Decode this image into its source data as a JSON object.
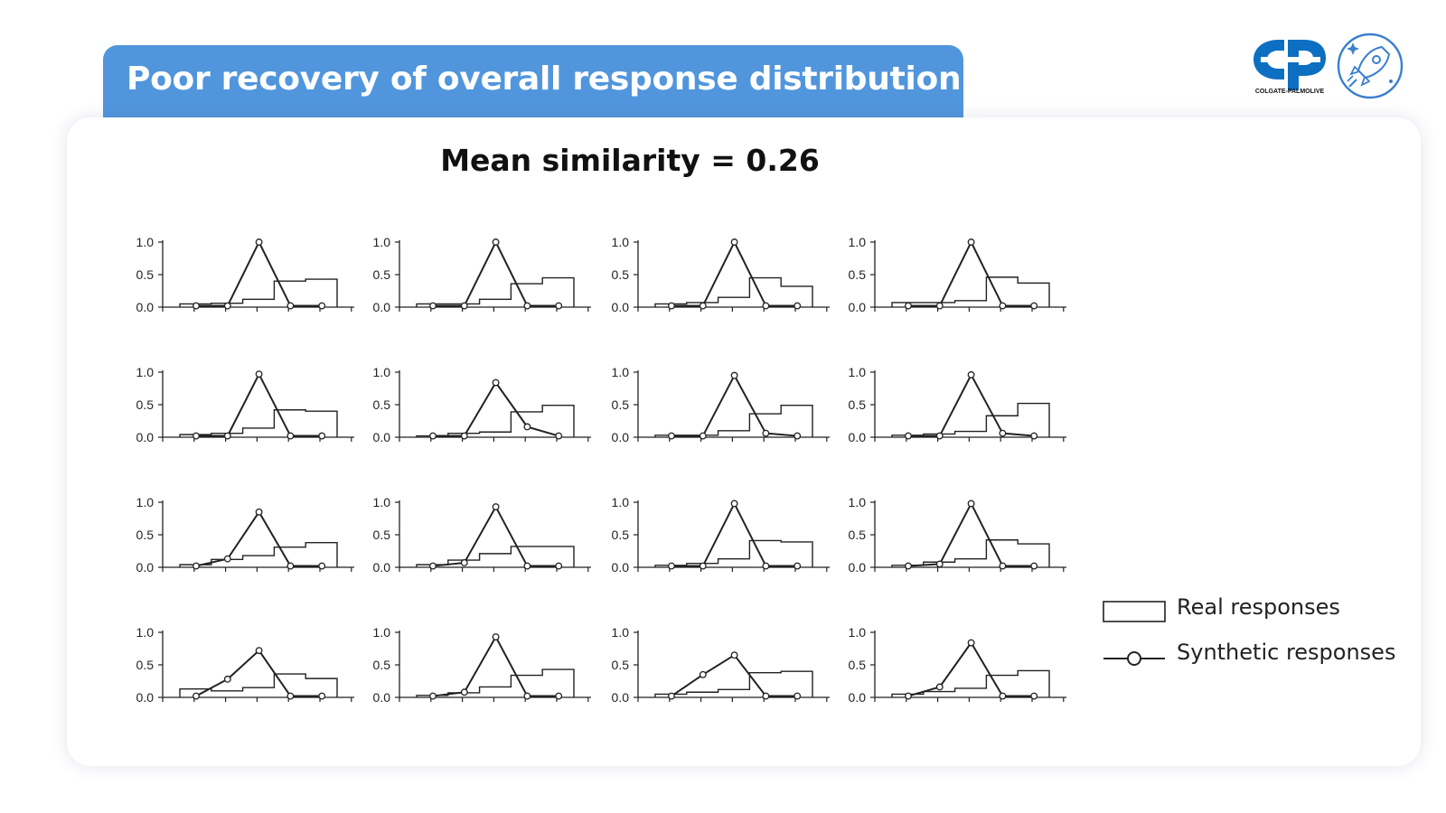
{
  "header": {
    "title": "Poor recovery of overall response distribution"
  },
  "logos": {
    "brand": "COLGATE-PALMOLIVE",
    "brand_color": "#0d6fc2",
    "rocket_icon": "rocket-icon",
    "rocket_color": "#3a7fd0"
  },
  "colors": {
    "accent": "#5196dc",
    "ink": "#222222"
  },
  "chart_data": {
    "type": "line",
    "title": "Mean similarity = 0.26",
    "ylim": [
      0,
      1.0
    ],
    "yticks": [
      "1.0",
      "0.5",
      "0.0"
    ],
    "legend": {
      "placement": "right",
      "real": "Real responses",
      "synthetic": "Synthetic responses"
    },
    "panels": [
      {
        "real": [
          0.05,
          0.06,
          0.12,
          0.4,
          0.43
        ],
        "synthetic": [
          0.02,
          0.02,
          1.0,
          0.02,
          0.02
        ]
      },
      {
        "real": [
          0.05,
          0.05,
          0.12,
          0.36,
          0.45
        ],
        "synthetic": [
          0.02,
          0.02,
          1.0,
          0.02,
          0.02
        ]
      },
      {
        "real": [
          0.05,
          0.07,
          0.15,
          0.45,
          0.32
        ],
        "synthetic": [
          0.02,
          0.02,
          1.0,
          0.02,
          0.02
        ]
      },
      {
        "real": [
          0.07,
          0.07,
          0.1,
          0.46,
          0.37
        ],
        "synthetic": [
          0.02,
          0.02,
          1.0,
          0.02,
          0.02
        ]
      },
      {
        "real": [
          0.04,
          0.06,
          0.14,
          0.42,
          0.4
        ],
        "synthetic": [
          0.02,
          0.02,
          0.97,
          0.02,
          0.02
        ]
      },
      {
        "real": [
          0.02,
          0.06,
          0.08,
          0.39,
          0.49
        ],
        "synthetic": [
          0.02,
          0.02,
          0.84,
          0.16,
          0.02
        ]
      },
      {
        "real": [
          0.03,
          0.03,
          0.1,
          0.36,
          0.49
        ],
        "synthetic": [
          0.02,
          0.02,
          0.95,
          0.06,
          0.02
        ]
      },
      {
        "real": [
          0.03,
          0.05,
          0.09,
          0.33,
          0.52
        ],
        "synthetic": [
          0.02,
          0.02,
          0.96,
          0.06,
          0.02
        ]
      },
      {
        "real": [
          0.04,
          0.12,
          0.18,
          0.31,
          0.38
        ],
        "synthetic": [
          0.02,
          0.13,
          0.85,
          0.02,
          0.02
        ]
      },
      {
        "real": [
          0.04,
          0.11,
          0.21,
          0.32,
          0.32
        ],
        "synthetic": [
          0.02,
          0.07,
          0.93,
          0.02,
          0.02
        ]
      },
      {
        "real": [
          0.03,
          0.06,
          0.13,
          0.41,
          0.39
        ],
        "synthetic": [
          0.02,
          0.02,
          0.98,
          0.02,
          0.02
        ]
      },
      {
        "real": [
          0.03,
          0.08,
          0.13,
          0.42,
          0.36
        ],
        "synthetic": [
          0.02,
          0.05,
          0.98,
          0.02,
          0.02
        ]
      },
      {
        "real": [
          0.13,
          0.1,
          0.15,
          0.36,
          0.29
        ],
        "synthetic": [
          0.02,
          0.28,
          0.72,
          0.02,
          0.02
        ]
      },
      {
        "real": [
          0.03,
          0.07,
          0.16,
          0.34,
          0.43
        ],
        "synthetic": [
          0.02,
          0.08,
          0.93,
          0.02,
          0.02
        ]
      },
      {
        "real": [
          0.05,
          0.08,
          0.12,
          0.38,
          0.4
        ],
        "synthetic": [
          0.02,
          0.35,
          0.65,
          0.02,
          0.02
        ]
      },
      {
        "real": [
          0.05,
          0.09,
          0.14,
          0.34,
          0.41
        ],
        "synthetic": [
          0.02,
          0.16,
          0.84,
          0.02,
          0.02
        ]
      }
    ]
  }
}
